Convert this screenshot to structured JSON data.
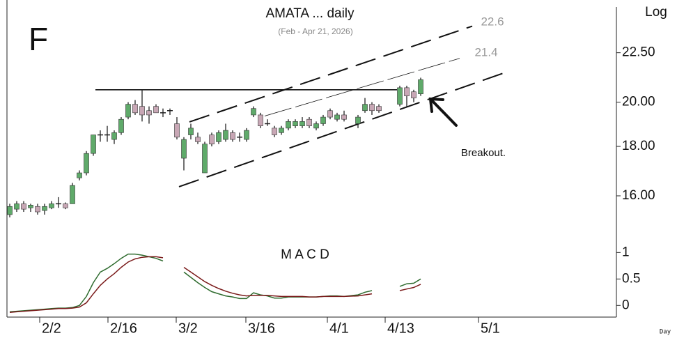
{
  "chart_data": [
    {
      "type": "candlestick",
      "title": "AMATA ... daily",
      "subtitle": "(Feb - Apr 21, 2026)",
      "panel_label": "F",
      "y_axis_label": "Log",
      "log_scale": true,
      "up_color": "#5faa6a",
      "down_color": "#c8a7b5",
      "xlim": [
        -0.4,
        87.1
      ],
      "ylim": [
        14.75,
        25.3
      ],
      "yticks": [
        {
          "value": 16,
          "label": "16.00"
        },
        {
          "value": 18,
          "label": "18.00"
        },
        {
          "value": 20,
          "label": "20.00"
        },
        {
          "value": 22.5,
          "label": "22.50"
        }
      ],
      "x": [
        0,
        1,
        2,
        3,
        4,
        5,
        6,
        7,
        8,
        9,
        10,
        11,
        12,
        13,
        14,
        15,
        16,
        17,
        18,
        19,
        20,
        21,
        22,
        23,
        24,
        25,
        26,
        27,
        28,
        29,
        30,
        31,
        32,
        33,
        34,
        35,
        36,
        37,
        38,
        39,
        40,
        41,
        42,
        43,
        44,
        45,
        46,
        47,
        48,
        50,
        51,
        52,
        53,
        56,
        57,
        58,
        59
      ],
      "open": [
        15.3,
        15.5,
        15.7,
        15.55,
        15.6,
        15.45,
        15.55,
        15.7,
        15.7,
        15.7,
        16.7,
        16.9,
        17.7,
        18.5,
        18.5,
        18.3,
        18.6,
        19.3,
        19.9,
        19.8,
        19.6,
        19.8,
        19.5,
        19.6,
        19.0,
        17.5,
        18.5,
        18.4,
        16.9,
        18.5,
        18.2,
        18.3,
        18.6,
        18.4,
        18.3,
        19.4,
        19.4,
        19.0,
        18.8,
        18.6,
        18.8,
        18.9,
        18.9,
        19.2,
        18.8,
        19.0,
        19.6,
        19.2,
        19.4,
        19.0,
        19.6,
        19.9,
        19.8,
        19.9,
        20.7,
        20.5,
        20.4
      ],
      "high": [
        15.7,
        15.8,
        15.8,
        15.7,
        15.7,
        15.7,
        15.8,
        15.95,
        15.75,
        16.5,
        17.0,
        17.8,
        18.5,
        18.7,
        18.9,
        18.7,
        19.3,
        20.0,
        20.1,
        20.6,
        19.8,
        19.9,
        19.7,
        19.7,
        19.3,
        18.4,
        19.0,
        18.6,
        18.2,
        18.6,
        18.7,
        19.0,
        18.7,
        18.6,
        18.8,
        19.8,
        19.5,
        19.2,
        18.9,
        18.9,
        19.2,
        19.2,
        19.3,
        19.3,
        19.1,
        19.4,
        19.7,
        19.5,
        19.6,
        19.4,
        20.2,
        20.0,
        19.9,
        20.8,
        20.8,
        20.6,
        21.2
      ],
      "low": [
        15.2,
        15.4,
        15.4,
        15.4,
        15.3,
        15.3,
        15.5,
        15.55,
        15.5,
        15.7,
        16.6,
        16.8,
        17.6,
        18.2,
        18.2,
        18.1,
        18.5,
        19.2,
        19.4,
        19.1,
        19.0,
        19.5,
        19.3,
        19.4,
        18.3,
        17.0,
        18.3,
        18.1,
        16.9,
        18.0,
        18.1,
        18.2,
        18.2,
        18.2,
        18.2,
        19.3,
        18.8,
        18.9,
        18.4,
        18.5,
        18.7,
        18.8,
        18.8,
        18.8,
        18.7,
        18.9,
        19.2,
        19.1,
        19.1,
        18.8,
        19.5,
        19.4,
        19.5,
        19.8,
        19.8,
        20.0,
        20.3
      ],
      "close": [
        15.6,
        15.7,
        15.5,
        15.65,
        15.4,
        15.6,
        15.7,
        15.7,
        15.55,
        16.4,
        16.9,
        17.7,
        18.5,
        18.5,
        18.5,
        18.6,
        19.2,
        19.9,
        19.5,
        19.4,
        19.4,
        19.5,
        19.5,
        19.6,
        18.4,
        18.3,
        18.8,
        18.2,
        18.1,
        18.1,
        18.6,
        18.7,
        18.3,
        18.4,
        18.7,
        19.7,
        18.9,
        19.0,
        18.5,
        18.8,
        19.1,
        19.1,
        19.1,
        18.9,
        19.0,
        19.3,
        19.3,
        19.4,
        19.2,
        19.3,
        19.9,
        19.6,
        19.6,
        20.7,
        20.3,
        20.2,
        21.1
      ],
      "trend_lines": [
        {
          "x": [
            12.3,
            55.6
          ],
          "y": [
            20.6,
            20.6
          ],
          "style": "solid"
        },
        {
          "x": [
            25.8,
            66.4
          ],
          "y": [
            19.08,
            23.97
          ],
          "style": "dashed"
        },
        {
          "x": [
            24.3,
            71.1
          ],
          "y": [
            16.35,
            21.46
          ],
          "style": "dashed"
        },
        {
          "x": [
            36.6,
            64.6
          ],
          "y": [
            19.35,
            22.2
          ],
          "style": "thin"
        }
      ],
      "targets": [
        22.6,
        21.4
      ],
      "annotation": "Breakout."
    },
    {
      "type": "line",
      "title": "M A C D",
      "x_axis_label": "Day",
      "xlim": [
        -0.4,
        87.1
      ],
      "ylim": [
        -0.22,
        1.36
      ],
      "yticks": [
        0,
        0.5,
        1
      ],
      "xticks": [
        {
          "value": 4.3,
          "label": "2/2"
        },
        {
          "value": 14.1,
          "label": "2/16"
        },
        {
          "value": 23.9,
          "label": "3/2"
        },
        {
          "value": 33.9,
          "label": "3/16"
        },
        {
          "value": 45.6,
          "label": "4/1"
        },
        {
          "value": 53.9,
          "label": "4/13"
        },
        {
          "value": 67.3,
          "label": "5/1"
        }
      ],
      "x": [
        0,
        1,
        2,
        3,
        4,
        5,
        6,
        7,
        8,
        9,
        10,
        11,
        12,
        13,
        14,
        15,
        16,
        17,
        18,
        19,
        20,
        21,
        22,
        23,
        24,
        25,
        26,
        27,
        28,
        29,
        30,
        31,
        32,
        33,
        34,
        35,
        36,
        37,
        38,
        39,
        40,
        41,
        42,
        43,
        44,
        45,
        46,
        47,
        48,
        50,
        51,
        52,
        53,
        56,
        57,
        58,
        59
      ],
      "series": [
        {
          "color": "#2e6b2e",
          "values": [
            -0.12,
            -0.11,
            -0.1,
            -0.09,
            -0.08,
            -0.07,
            -0.06,
            -0.05,
            -0.05,
            -0.04,
            0.0,
            0.17,
            0.43,
            0.63,
            0.7,
            0.79,
            0.89,
            0.97,
            0.97,
            0.95,
            0.92,
            0.89,
            0.84,
            null,
            null,
            0.63,
            0.53,
            0.43,
            0.34,
            0.26,
            0.22,
            0.18,
            0.16,
            0.13,
            0.13,
            0.24,
            0.2,
            0.18,
            0.14,
            0.14,
            0.16,
            0.16,
            0.16,
            0.16,
            0.16,
            0.17,
            0.18,
            0.18,
            0.17,
            0.2,
            0.25,
            0.28,
            null,
            0.36,
            0.41,
            0.42,
            0.5
          ]
        },
        {
          "color": "#7a1a1a",
          "values": [
            -0.13,
            -0.12,
            -0.11,
            -0.1,
            -0.09,
            -0.08,
            -0.07,
            -0.06,
            -0.06,
            -0.05,
            -0.03,
            0.05,
            0.22,
            0.38,
            0.5,
            0.6,
            0.72,
            0.82,
            0.88,
            0.91,
            0.92,
            0.92,
            0.9,
            null,
            null,
            0.72,
            0.63,
            0.54,
            0.45,
            0.38,
            0.32,
            0.27,
            0.23,
            0.2,
            0.18,
            0.19,
            0.19,
            0.19,
            0.18,
            0.17,
            0.17,
            0.17,
            0.17,
            0.16,
            0.16,
            0.17,
            0.17,
            0.17,
            0.17,
            0.18,
            0.2,
            0.22,
            null,
            0.28,
            0.31,
            0.34,
            0.4
          ]
        }
      ]
    }
  ]
}
